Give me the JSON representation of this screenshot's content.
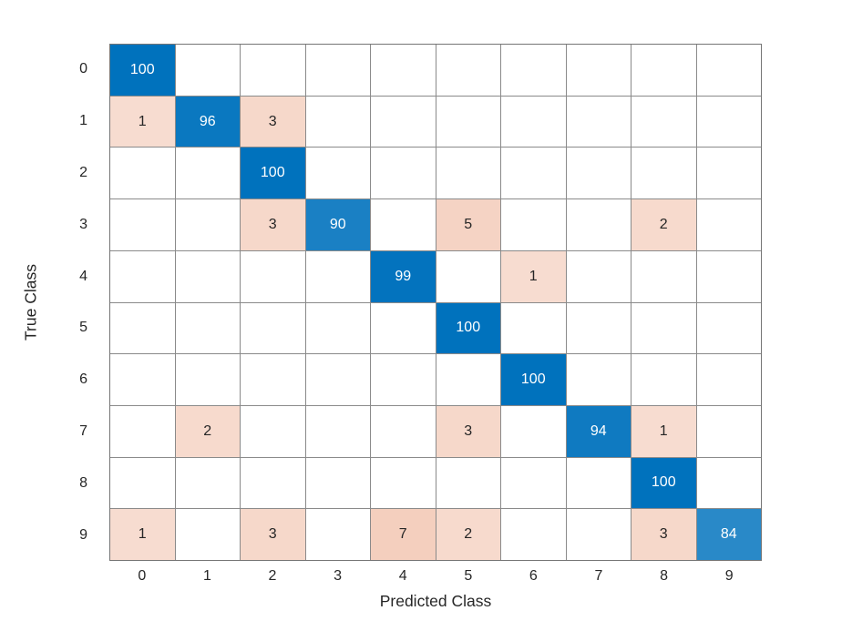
{
  "chart_data": {
    "type": "heatmap",
    "subtype": "confusion-matrix",
    "title": "",
    "xlabel": "Predicted Class",
    "ylabel": "True Class",
    "x_ticks": [
      "0",
      "1",
      "2",
      "3",
      "4",
      "5",
      "6",
      "7",
      "8",
      "9"
    ],
    "y_ticks": [
      "0",
      "1",
      "2",
      "3",
      "4",
      "5",
      "6",
      "7",
      "8",
      "9"
    ],
    "matrix": [
      [
        100,
        null,
        null,
        null,
        null,
        null,
        null,
        null,
        null,
        null
      ],
      [
        1,
        96,
        3,
        null,
        null,
        null,
        null,
        null,
        null,
        null
      ],
      [
        null,
        null,
        100,
        null,
        null,
        null,
        null,
        null,
        null,
        null
      ],
      [
        null,
        null,
        3,
        90,
        null,
        5,
        null,
        null,
        2,
        null
      ],
      [
        null,
        null,
        null,
        null,
        99,
        null,
        1,
        null,
        null,
        null
      ],
      [
        null,
        null,
        null,
        null,
        null,
        100,
        null,
        null,
        null,
        null
      ],
      [
        null,
        null,
        null,
        null,
        null,
        null,
        100,
        null,
        null,
        null
      ],
      [
        null,
        2,
        null,
        null,
        null,
        3,
        null,
        94,
        1,
        null
      ],
      [
        null,
        null,
        null,
        null,
        null,
        null,
        null,
        null,
        100,
        null
      ],
      [
        1,
        null,
        3,
        null,
        7,
        2,
        null,
        null,
        3,
        84
      ]
    ],
    "value_max": 100,
    "grid": true,
    "legend": "none",
    "colors": {
      "diagonal_base": "#0072BD",
      "off_diagonal_base": "#D95319",
      "empty_cell": "#FFFFFF",
      "grid_line": "#8A8A8A",
      "plot_border": "#757575",
      "diagonal_text": "#FFFFFF",
      "off_diagonal_text": "#262626",
      "tick_text": "#262626",
      "axis_label_text": "#262626",
      "background": "#FFFFFF"
    }
  }
}
